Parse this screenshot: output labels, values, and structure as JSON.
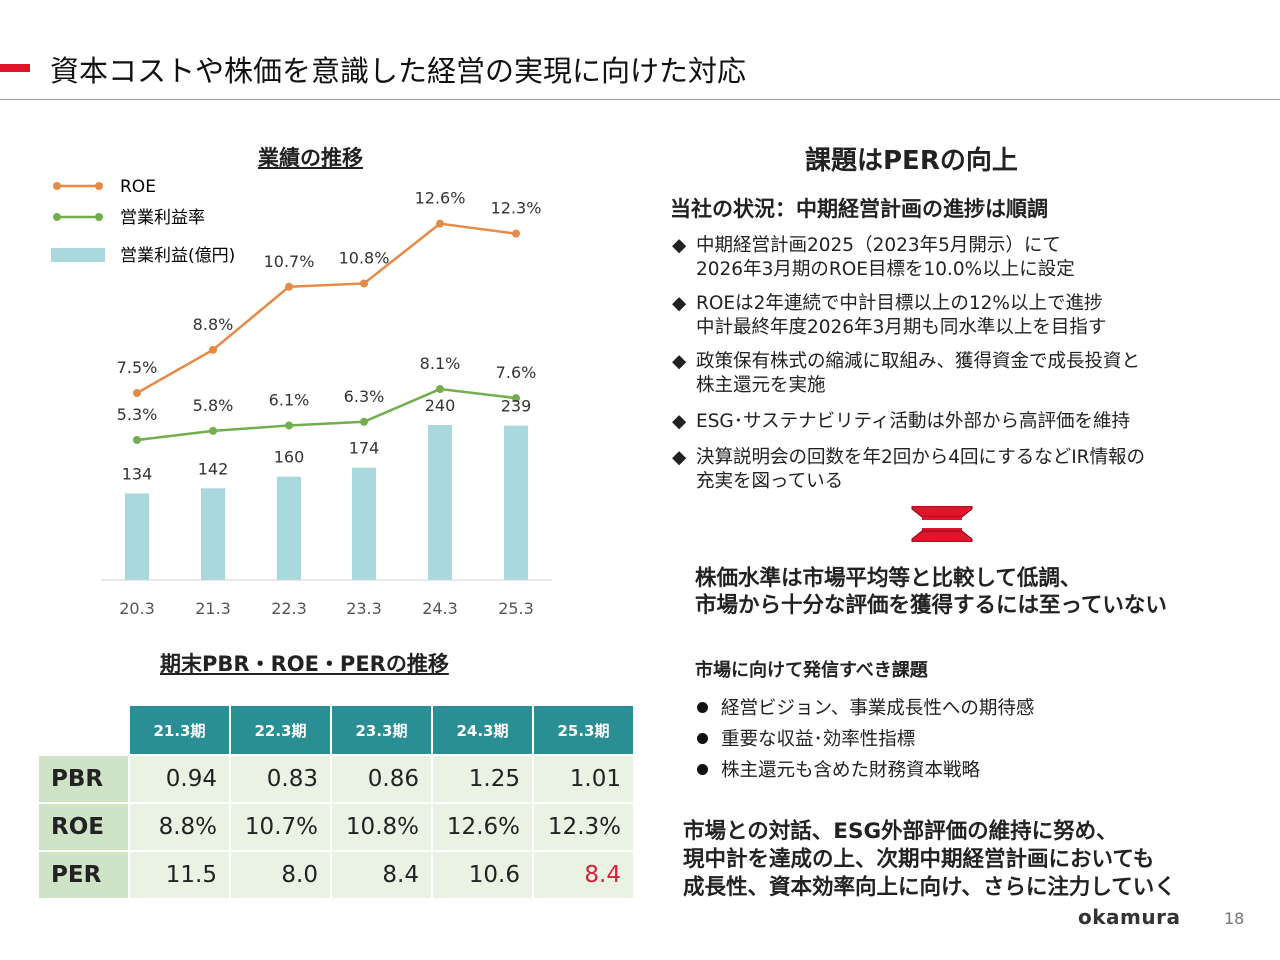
{
  "page": {
    "title": "資本コストや株価を意識した経営の実現に向けた対応",
    "page_number": "18",
    "brand": "okamura",
    "accent_color": "#e0152b"
  },
  "left": {
    "chart_title": "業績の推移",
    "table_title": "期末PBR・ROE・PERの推移"
  },
  "chart_data": [
    {
      "type": "bar+line",
      "title": "業績の推移",
      "categories": [
        "20.3",
        "21.3",
        "22.3",
        "23.3",
        "24.3",
        "25.3"
      ],
      "series": [
        {
          "name": "ROE",
          "kind": "line",
          "color": "#e58a47",
          "values": [
            7.5,
            8.8,
            10.7,
            10.8,
            12.6,
            12.3
          ],
          "labels": [
            "7.5%",
            "8.8%",
            "10.7%",
            "10.8%",
            "12.6%",
            "12.3%"
          ]
        },
        {
          "name": "営業利益率",
          "kind": "line",
          "color": "#72ad4e",
          "values": [
            5.3,
            5.8,
            6.1,
            6.3,
            8.1,
            7.6
          ],
          "labels": [
            "5.3%",
            "5.8%",
            "6.1%",
            "6.3%",
            "8.1%",
            "7.6%"
          ]
        },
        {
          "name": "営業利益(億円)",
          "kind": "bar",
          "color": "#a9d9dd",
          "values": [
            134,
            142,
            160,
            174,
            240,
            239
          ],
          "labels": [
            "134",
            "142",
            "160",
            "174",
            "240",
            "239"
          ]
        }
      ],
      "legend": "top-left",
      "grid": false
    },
    {
      "type": "table",
      "title": "期末PBR・ROE・PERの推移",
      "columns": [
        "21.3期",
        "22.3期",
        "23.3期",
        "24.3期",
        "25.3期"
      ],
      "rows": [
        {
          "label": "PBR",
          "values": [
            "0.94",
            "0.83",
            "0.86",
            "1.25",
            "1.01"
          ]
        },
        {
          "label": "ROE",
          "values": [
            "8.8%",
            "10.7%",
            "10.8%",
            "12.6%",
            "12.3%"
          ]
        },
        {
          "label": "PER",
          "values": [
            "11.5",
            "8.0",
            "8.4",
            "10.6",
            "8.4"
          ]
        }
      ],
      "highlight_color": "#d6203a"
    }
  ],
  "right": {
    "heading": "課題はPERの向上",
    "status_heading": "当社の状況：中期経営計画の進捗は順調",
    "bullets": [
      {
        "line1": "中期経営計画2025（2023年5月開示）にて",
        "line2": "2026年3月期のROE目標を10.0%以上に設定"
      },
      {
        "line1": "ROEは2年連続で中計目標以上の12%以上で進捗",
        "line2": "中計最終年度2026年3月期も同水準以上を目指す"
      },
      {
        "line1": "政策保有株式の縮減に取組み、獲得資金で成長投資と",
        "line2": "株主還元を実施"
      },
      {
        "line1": "ESG･サステナビリティ活動は外部から高評価を維持",
        "line2": ""
      },
      {
        "line1": "決算説明会の回数を年2回から4回にするなどIR情報の",
        "line2": "充実を図っている"
      }
    ],
    "bullet_marker": "◆",
    "conclusion_line1": "株価水準は市場平均等と比較して低調、",
    "conclusion_line2": "市場から十分な評価を獲得するには至っていない",
    "market_heading": "市場に向けて発信すべき課題",
    "market_items": [
      "経営ビジョン、事業成長性への期待感",
      "重要な収益･効率性指標",
      "株主還元も含めた財務資本戦略"
    ],
    "closing_line1": "市場との対話、ESG外部評価の維持に努め、",
    "closing_line2": "現中計を達成の上、次期中期経営計画においても",
    "closing_line3": "成長性、資本効率向上に向け、さらに注力していく"
  }
}
